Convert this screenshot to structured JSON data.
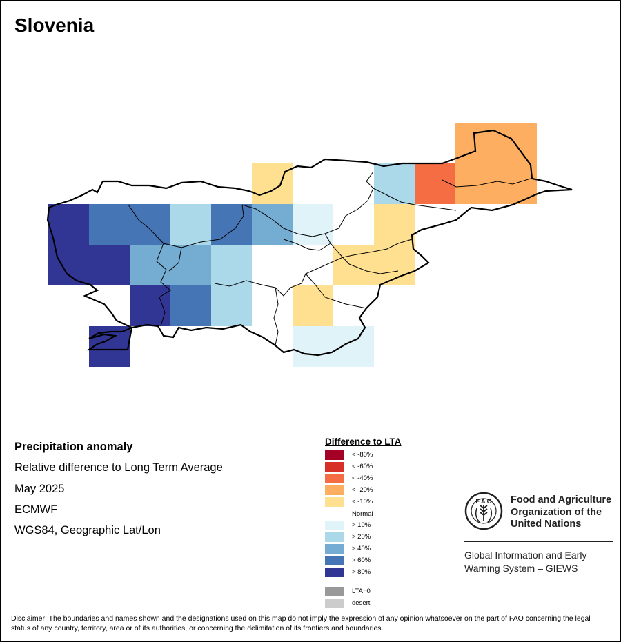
{
  "map": {
    "title": "Slovenia",
    "info": {
      "heading": "Precipitation anomaly",
      "line1": "Relative difference to Long Term Average",
      "line2": "May 2025",
      "line3": "ECMWF",
      "line4": "WGS84, Geographic Lat/Lon"
    },
    "legend": {
      "title": "Difference to LTA",
      "items": [
        {
          "label": "< -80%",
          "color": "#a50026"
        },
        {
          "label": "< -60%",
          "color": "#d73027"
        },
        {
          "label": "< -40%",
          "color": "#f46d43"
        },
        {
          "label": "< -20%",
          "color": "#fdae61"
        },
        {
          "label": "< -10%",
          "color": "#fee090"
        },
        {
          "label": "> 10%",
          "color": "#e0f3f8"
        },
        {
          "label": "> 20%",
          "color": "#abd9e9"
        },
        {
          "label": "> 40%",
          "color": "#74add1"
        },
        {
          "label": "> 60%",
          "color": "#4575b4"
        },
        {
          "label": "> 80%",
          "color": "#313695"
        },
        {
          "label": "LTA=0",
          "color": "#999999"
        },
        {
          "label": "desert",
          "color": "#cccccc"
        }
      ],
      "normal_label": "Normal"
    },
    "grid_cells": [
      {
        "row": 0,
        "col": 10,
        "class": "< -20%"
      },
      {
        "row": 0,
        "col": 11,
        "class": "< -20%"
      },
      {
        "row": 1,
        "col": 5,
        "class": "< -10%"
      },
      {
        "row": 1,
        "col": 8,
        "class": "> 20%"
      },
      {
        "row": 1,
        "col": 9,
        "class": "< -40%"
      },
      {
        "row": 1,
        "col": 10,
        "class": "< -20%"
      },
      {
        "row": 1,
        "col": 11,
        "class": "< -20%"
      },
      {
        "row": 2,
        "col": 0,
        "class": "> 80%"
      },
      {
        "row": 2,
        "col": 1,
        "class": "> 60%"
      },
      {
        "row": 2,
        "col": 2,
        "class": "> 60%"
      },
      {
        "row": 2,
        "col": 3,
        "class": "> 20%"
      },
      {
        "row": 2,
        "col": 4,
        "class": "> 60%"
      },
      {
        "row": 2,
        "col": 5,
        "class": "> 40%"
      },
      {
        "row": 2,
        "col": 6,
        "class": "> 10%"
      },
      {
        "row": 2,
        "col": 8,
        "class": "< -10%"
      },
      {
        "row": 3,
        "col": 0,
        "class": "> 80%"
      },
      {
        "row": 3,
        "col": 1,
        "class": "> 80%"
      },
      {
        "row": 3,
        "col": 2,
        "class": "> 40%"
      },
      {
        "row": 3,
        "col": 3,
        "class": "> 40%"
      },
      {
        "row": 3,
        "col": 4,
        "class": "> 20%"
      },
      {
        "row": 3,
        "col": 7,
        "class": "< -10%"
      },
      {
        "row": 3,
        "col": 8,
        "class": "< -10%"
      },
      {
        "row": 4,
        "col": 2,
        "class": "> 80%"
      },
      {
        "row": 4,
        "col": 3,
        "class": "> 60%"
      },
      {
        "row": 4,
        "col": 4,
        "class": "> 20%"
      },
      {
        "row": 4,
        "col": 6,
        "class": "< -10%"
      },
      {
        "row": 5,
        "col": 1,
        "class": "> 80%"
      },
      {
        "row": 5,
        "col": 6,
        "class": "> 10%"
      },
      {
        "row": 5,
        "col": 7,
        "class": "> 10%"
      }
    ],
    "fao": {
      "name_line1": "Food and Agriculture",
      "name_line2": "Organization of the",
      "name_line3": "United Nations",
      "logo_text": "FAO FIAT PANIS",
      "giews_line1": "Global Information and Early",
      "giews_line2": "Warning System – GIEWS"
    },
    "disclaimer": "Disclaimer: The boundaries and names shown and the designations used on this map do not imply the expression of any opinion whatsoever on the part of FAO concerning the legal status of any country, territory, area or of its authorities, or concerning the delimitation of its frontiers and boundaries."
  }
}
